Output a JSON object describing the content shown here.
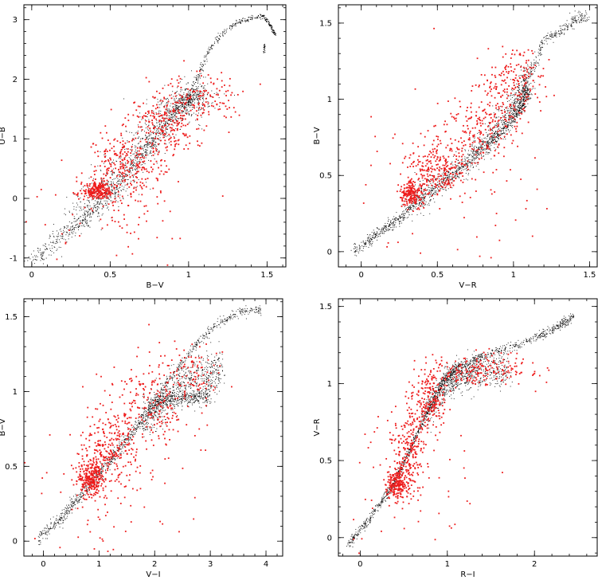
{
  "chart_data": [
    {
      "type": "scatter",
      "xlabel": "B−V",
      "ylabel": "U−B",
      "xlim": [
        -0.05,
        1.62
      ],
      "ylim": [
        -1.15,
        3.25
      ],
      "xticks": [
        "0",
        "0.5",
        "1",
        "1.5"
      ],
      "xtick_values": [
        0,
        0.5,
        1,
        1.5
      ],
      "yticks": [
        "-1",
        "0",
        "1",
        "2",
        "3"
      ],
      "ytick_values": [
        -1,
        0,
        1,
        2,
        3
      ],
      "series": [
        {
          "color": "#000000",
          "role": "model",
          "seed": 11,
          "count": 2000,
          "tracks": [
            {
              "points": [
                [
                  0.0,
                  -1.05
                ],
                [
                  0.15,
                  -0.7
                ],
                [
                  0.3,
                  -0.4
                ],
                [
                  0.45,
                  -0.05
                ],
                [
                  0.6,
                  0.4
                ],
                [
                  0.75,
                  0.9
                ],
                [
                  0.85,
                  1.25
                ],
                [
                  0.95,
                  1.6
                ],
                [
                  1.05,
                  1.78
                ]
              ],
              "spread": 0.06,
              "w": 3
            },
            {
              "points": [
                [
                  0.3,
                  -0.3
                ],
                [
                  0.5,
                  0.2
                ],
                [
                  0.65,
                  0.7
                ],
                [
                  0.8,
                  1.2
                ],
                [
                  0.92,
                  1.5
                ],
                [
                  1.0,
                  1.65
                ],
                [
                  1.1,
                  1.85
                ]
              ],
              "spread": 0.14,
              "w": 3
            },
            {
              "points": [
                [
                  0.98,
                  1.5
                ],
                [
                  1.05,
                  2.0
                ],
                [
                  1.12,
                  2.45
                ],
                [
                  1.2,
                  2.75
                ],
                [
                  1.3,
                  2.95
                ],
                [
                  1.42,
                  3.05
                ],
                [
                  1.48,
                  3.05
                ]
              ],
              "spread": 0.02,
              "w": 1
            },
            {
              "points": [
                [
                  1.48,
                  3.05
                ],
                [
                  1.52,
                  2.9
                ],
                [
                  1.55,
                  2.75
                ]
              ],
              "spread": 0.01,
              "w": 0.3
            },
            {
              "points": [
                [
                  1.48,
                  2.6
                ],
                [
                  1.48,
                  2.45
                ]
              ],
              "spread": 0.005,
              "w": 0.1
            }
          ]
        },
        {
          "color": "#ee1c1c",
          "role": "observed",
          "seed": 21,
          "count": 900,
          "clusters": [
            {
              "c": [
                0.42,
                0.12
              ],
              "s": [
                0.05,
                0.07
              ],
              "w": 2.5
            },
            {
              "c": [
                0.6,
                0.55
              ],
              "s": [
                0.12,
                0.3
              ],
              "w": 3
            },
            {
              "c": [
                0.85,
                1.25
              ],
              "s": [
                0.12,
                0.25
              ],
              "w": 2.5
            },
            {
              "c": [
                1.1,
                1.7
              ],
              "s": [
                0.12,
                0.2
              ],
              "w": 1.5
            },
            {
              "c": [
                0.55,
                -0.3
              ],
              "s": [
                0.3,
                0.4
              ],
              "w": 0.8
            }
          ]
        }
      ]
    },
    {
      "type": "scatter",
      "xlabel": "V−R",
      "ylabel": "B−V",
      "xlim": [
        -0.15,
        1.55
      ],
      "ylim": [
        -0.1,
        1.62
      ],
      "xticks": [
        "0",
        "0.5",
        "1",
        "1.5"
      ],
      "xtick_values": [
        0,
        0.5,
        1,
        1.5
      ],
      "yticks": [
        "0",
        "0.5",
        "1",
        "1.5"
      ],
      "ytick_values": [
        0,
        0.5,
        1,
        1.5
      ],
      "series": [
        {
          "color": "#000000",
          "role": "model",
          "seed": 31,
          "count": 2000,
          "tracks": [
            {
              "points": [
                [
                  -0.05,
                  0.0
                ],
                [
                  0.1,
                  0.12
                ],
                [
                  0.25,
                  0.22
                ],
                [
                  0.4,
                  0.35
                ],
                [
                  0.6,
                  0.5
                ],
                [
                  0.8,
                  0.68
                ],
                [
                  0.95,
                  0.82
                ],
                [
                  1.05,
                  0.95
                ],
                [
                  1.1,
                  1.05
                ]
              ],
              "spread": 0.02,
              "w": 3
            },
            {
              "points": [
                [
                  0.3,
                  0.3
                ],
                [
                  0.5,
                  0.45
                ],
                [
                  0.7,
                  0.6
                ],
                [
                  0.85,
                  0.75
                ],
                [
                  0.98,
                  0.92
                ],
                [
                  1.05,
                  1.05
                ],
                [
                  1.08,
                  1.15
                ]
              ],
              "spread": 0.05,
              "w": 2.5
            },
            {
              "points": [
                [
                  1.05,
                  1.0
                ],
                [
                  1.12,
                  1.2
                ],
                [
                  1.2,
                  1.38
                ],
                [
                  1.3,
                  1.45
                ],
                [
                  1.4,
                  1.52
                ],
                [
                  1.48,
                  1.55
                ]
              ],
              "spread": 0.02,
              "w": 1
            }
          ]
        },
        {
          "color": "#ee1c1c",
          "role": "observed",
          "seed": 41,
          "count": 900,
          "clusters": [
            {
              "c": [
                0.33,
                0.38
              ],
              "s": [
                0.04,
                0.04
              ],
              "w": 2
            },
            {
              "c": [
                0.5,
                0.55
              ],
              "s": [
                0.1,
                0.1
              ],
              "w": 2.5
            },
            {
              "c": [
                0.8,
                0.8
              ],
              "s": [
                0.12,
                0.12
              ],
              "w": 2
            },
            {
              "c": [
                1.0,
                1.1
              ],
              "s": [
                0.1,
                0.12
              ],
              "w": 2
            },
            {
              "c": [
                0.5,
                0.4
              ],
              "s": [
                0.3,
                0.3
              ],
              "w": 0.8
            }
          ]
        }
      ]
    },
    {
      "type": "scatter",
      "xlabel": "V−I",
      "ylabel": "B−V",
      "xlim": [
        -0.35,
        4.3
      ],
      "ylim": [
        -0.1,
        1.62
      ],
      "xticks": [
        "0",
        "1",
        "2",
        "3",
        "4"
      ],
      "xtick_values": [
        0,
        1,
        2,
        3,
        4
      ],
      "yticks": [
        "0",
        "0.5",
        "1",
        "1.5"
      ],
      "ytick_values": [
        0,
        0.5,
        1,
        1.5
      ],
      "series": [
        {
          "color": "#000000",
          "role": "model",
          "seed": 51,
          "count": 2000,
          "tracks": [
            {
              "points": [
                [
                  -0.1,
                  0.02
                ],
                [
                  0.3,
                  0.15
                ],
                [
                  0.7,
                  0.32
                ],
                [
                  1.1,
                  0.5
                ],
                [
                  1.5,
                  0.68
                ],
                [
                  1.9,
                  0.88
                ],
                [
                  2.2,
                  0.95
                ],
                [
                  2.6,
                  0.95
                ],
                [
                  3.0,
                  0.97
                ]
              ],
              "spread": 0.025,
              "w": 3
            },
            {
              "points": [
                [
                  1.8,
                  0.8
                ],
                [
                  2.1,
                  0.92
                ],
                [
                  2.5,
                  1.05
                ],
                [
                  2.9,
                  1.1
                ],
                [
                  3.2,
                  1.15
                ]
              ],
              "spread": 0.07,
              "w": 2
            },
            {
              "points": [
                [
                  1.9,
                  0.9
                ],
                [
                  2.3,
                  1.1
                ],
                [
                  2.7,
                  1.3
                ],
                [
                  3.1,
                  1.45
                ],
                [
                  3.5,
                  1.53
                ],
                [
                  3.9,
                  1.55
                ]
              ],
              "spread": 0.015,
              "w": 1
            }
          ]
        },
        {
          "color": "#ee1c1c",
          "role": "observed",
          "seed": 61,
          "count": 900,
          "clusters": [
            {
              "c": [
                0.85,
                0.42
              ],
              "s": [
                0.12,
                0.06
              ],
              "w": 2.5
            },
            {
              "c": [
                1.2,
                0.6
              ],
              "s": [
                0.25,
                0.12
              ],
              "w": 2.5
            },
            {
              "c": [
                1.9,
                0.9
              ],
              "s": [
                0.4,
                0.15
              ],
              "w": 2
            },
            {
              "c": [
                2.6,
                1.12
              ],
              "s": [
                0.3,
                0.1
              ],
              "w": 1
            },
            {
              "c": [
                1.2,
                0.35
              ],
              "s": [
                0.8,
                0.3
              ],
              "w": 0.8
            }
          ]
        }
      ]
    },
    {
      "type": "scatter",
      "xlabel": "R−I",
      "ylabel": "V−R",
      "xlim": [
        -0.25,
        2.72
      ],
      "ylim": [
        -0.12,
        1.55
      ],
      "xticks": [
        "0",
        "1",
        "2"
      ],
      "xtick_values": [
        0,
        1,
        2
      ],
      "yticks": [
        "0",
        "0.5",
        "1",
        "1.5"
      ],
      "ytick_values": [
        0,
        0.5,
        1,
        1.5
      ],
      "series": [
        {
          "color": "#000000",
          "role": "model",
          "seed": 71,
          "count": 2000,
          "tracks": [
            {
              "points": [
                [
                  -0.15,
                  -0.05
                ],
                [
                  0.1,
                  0.12
                ],
                [
                  0.35,
                  0.32
                ],
                [
                  0.55,
                  0.55
                ],
                [
                  0.75,
                  0.8
                ],
                [
                  0.95,
                  1.02
                ],
                [
                  1.1,
                  1.1
                ],
                [
                  1.4,
                  1.18
                ],
                [
                  1.8,
                  1.25
                ],
                [
                  2.2,
                  1.35
                ],
                [
                  2.45,
                  1.43
                ]
              ],
              "spread": 0.015,
              "w": 3
            },
            {
              "points": [
                [
                  0.75,
                  0.8
                ],
                [
                  0.95,
                  0.98
                ],
                [
                  1.15,
                  1.06
                ],
                [
                  1.4,
                  1.08
                ],
                [
                  1.7,
                  1.09
                ]
              ],
              "spread": 0.05,
              "w": 2
            }
          ]
        },
        {
          "color": "#ee1c1c",
          "role": "observed",
          "seed": 81,
          "count": 900,
          "clusters": [
            {
              "c": [
                0.42,
                0.35
              ],
              "s": [
                0.06,
                0.05
              ],
              "w": 2
            },
            {
              "c": [
                0.55,
                0.55
              ],
              "s": [
                0.1,
                0.15
              ],
              "w": 2.5
            },
            {
              "c": [
                0.8,
                0.9
              ],
              "s": [
                0.1,
                0.1
              ],
              "w": 2
            },
            {
              "c": [
                1.4,
                1.08
              ],
              "s": [
                0.3,
                0.05
              ],
              "w": 2
            },
            {
              "c": [
                0.6,
                0.4
              ],
              "s": [
                0.4,
                0.3
              ],
              "w": 0.6
            }
          ]
        }
      ]
    }
  ]
}
